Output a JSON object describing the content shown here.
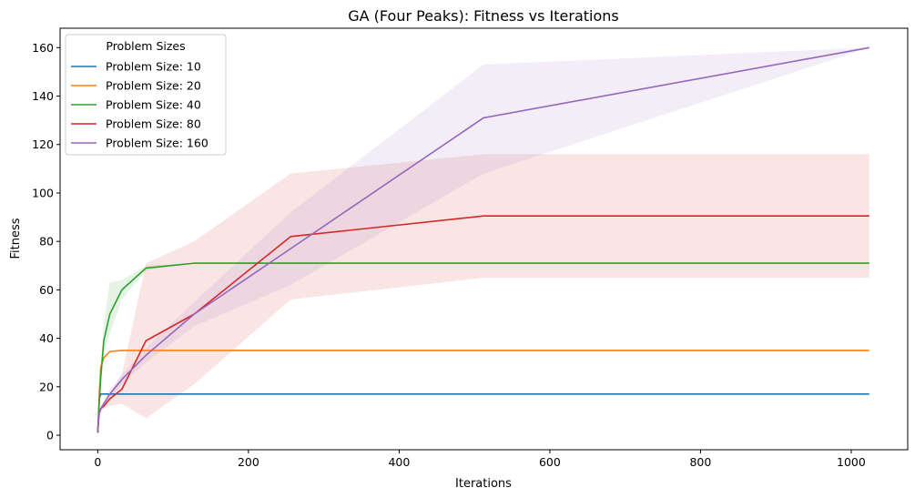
{
  "chart_data": {
    "type": "line",
    "title": "GA (Four Peaks): Fitness vs  Iterations",
    "xlabel": "Iterations",
    "ylabel": "Fitness",
    "xlim": [
      -50,
      1075
    ],
    "ylim": [
      -6,
      168
    ],
    "xticks": [
      0,
      200,
      400,
      600,
      800,
      1000
    ],
    "yticks": [
      0,
      20,
      40,
      60,
      80,
      100,
      120,
      140,
      160
    ],
    "grid": false,
    "legend": {
      "title": "Problem Sizes",
      "placement": "top-left"
    },
    "x": [
      0,
      1,
      2,
      4,
      8,
      16,
      32,
      64,
      128,
      256,
      512,
      1024
    ],
    "series": [
      {
        "name": "Problem Size: 10",
        "color": "#1f77b4",
        "values": [
          1,
          7,
          15,
          17,
          17,
          17,
          17,
          17,
          17,
          17,
          17,
          17
        ],
        "band_low": null,
        "band_high": null
      },
      {
        "name": "Problem Size: 20",
        "color": "#ff7f0e",
        "values": [
          1,
          8,
          17,
          28,
          32,
          34.5,
          35,
          35,
          35,
          35,
          35,
          35
        ],
        "band_low": null,
        "band_high": null
      },
      {
        "name": "Problem Size: 40",
        "color": "#2ca02c",
        "values": [
          1,
          8,
          14,
          24,
          39,
          50,
          60,
          69,
          71,
          71,
          71,
          71
        ],
        "band_low": [
          1,
          7,
          12,
          21,
          34,
          42,
          56,
          68,
          71,
          71,
          71,
          71
        ],
        "band_high": [
          1,
          9,
          16,
          28,
          46,
          63,
          64,
          70,
          71,
          71,
          71,
          71
        ]
      },
      {
        "name": "Problem Size: 80",
        "color": "#d62728",
        "values": [
          1,
          6,
          9,
          11,
          12,
          15,
          19,
          39,
          50,
          82,
          90.5,
          90.5
        ],
        "band_low": [
          1,
          5,
          8,
          10,
          11,
          12,
          13,
          7,
          21,
          56,
          65,
          65
        ],
        "band_high": [
          1,
          7,
          10,
          12,
          13,
          17,
          25,
          71,
          80,
          108,
          116,
          116
        ]
      },
      {
        "name": "Problem Size: 160",
        "color": "#9467bd",
        "values": [
          1,
          6,
          9,
          11,
          13,
          17,
          23,
          33,
          50,
          77,
          131,
          160
        ],
        "band_low": [
          1,
          5,
          8,
          10,
          12,
          15,
          21,
          30,
          45,
          62,
          108,
          160
        ],
        "band_high": [
          1,
          7,
          10,
          12,
          14,
          19,
          25,
          36,
          55,
          92,
          153,
          160
        ]
      }
    ]
  }
}
